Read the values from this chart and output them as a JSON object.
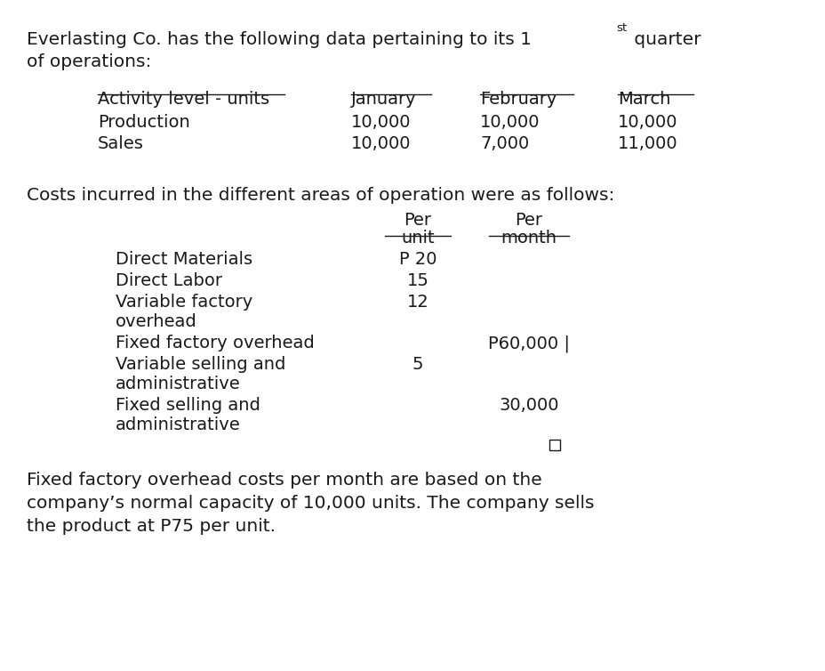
{
  "bg_color": "#ffffff",
  "text_color": "#1a1a1a",
  "title_line1": "Everlasting Co. has the following data pertaining to its 1",
  "title_superscript": "st",
  "title_line1_suffix": " quarter",
  "title_line2": "of operations:",
  "table1_header": [
    "Activity level - units",
    "January",
    "February",
    "March"
  ],
  "table1_rows": [
    [
      "Production",
      "10,000",
      "10,000",
      "10,000"
    ],
    [
      "Sales",
      "10,000",
      "7,000",
      "11,000"
    ]
  ],
  "costs_intro": "Costs incurred in the different areas of operation were as follows:",
  "cost_rows": [
    {
      "label1": "Direct Materials",
      "label2": "",
      "per_unit": "P 20",
      "per_month": ""
    },
    {
      "label1": "Direct Labor",
      "label2": "",
      "per_unit": "15",
      "per_month": ""
    },
    {
      "label1": "Variable factory",
      "label2": "overhead",
      "per_unit": "12",
      "per_month": ""
    },
    {
      "label1": "Fixed factory overhead",
      "label2": "",
      "per_unit": "",
      "per_month": "P60,000 |"
    },
    {
      "label1": "Variable selling and",
      "label2": "administrative",
      "per_unit": "5",
      "per_month": ""
    },
    {
      "label1": "Fixed selling and",
      "label2": "administrative",
      "per_unit": "",
      "per_month": "30,000"
    }
  ],
  "footer_line1": "Fixed factory overhead costs per month are based on the",
  "footer_line2": "company’s normal capacity of 10,000 units. The company sells",
  "footer_line3": "the product at P75 per unit."
}
